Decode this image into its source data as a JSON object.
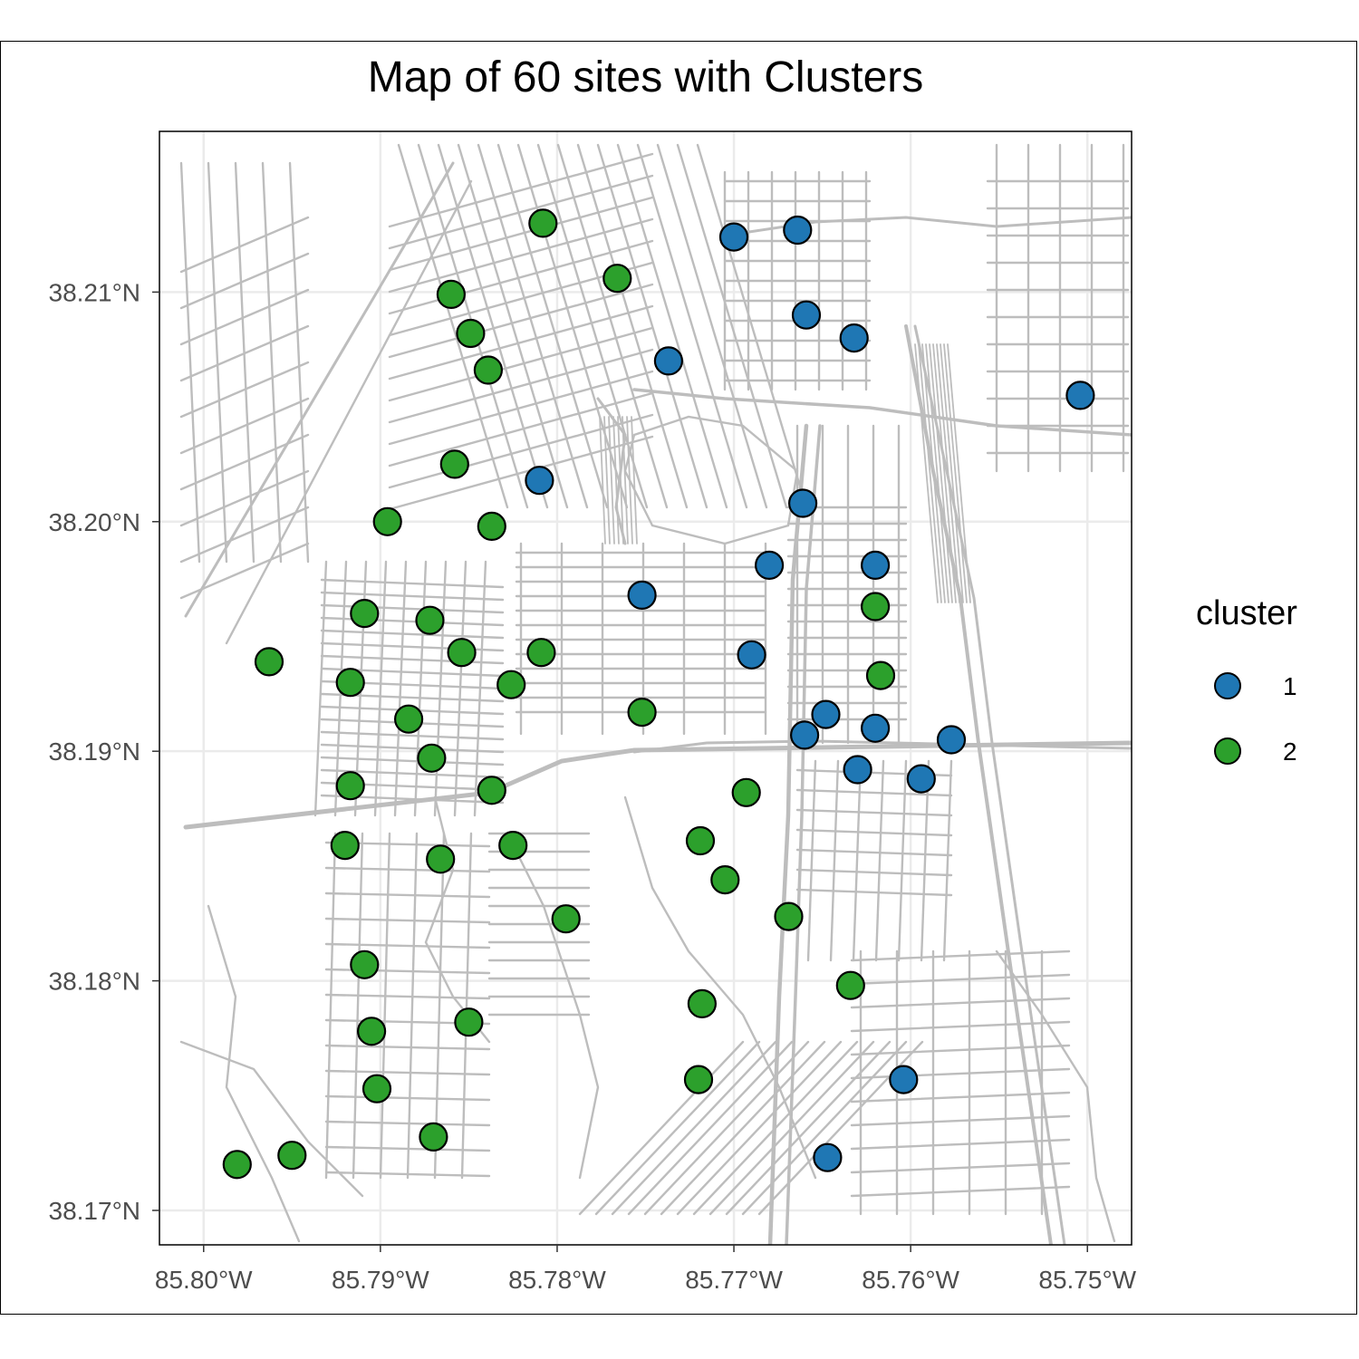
{
  "title": "Map of 60 sites with Clusters",
  "colors": {
    "cluster_1": "#1f77b4",
    "cluster_2": "#2ca02c",
    "streets": "#bdbdbd",
    "grid": "#ebebeb"
  },
  "legend": {
    "title": "cluster",
    "items": [
      {
        "label": "1",
        "color": "#1f77b4"
      },
      {
        "label": "2",
        "color": "#2ca02c"
      }
    ]
  },
  "chart_data": {
    "type": "scatter",
    "title": "Map of 60 sites with Clusters",
    "xlabel": "",
    "ylabel": "",
    "x_ticks": [
      -85.8,
      -85.79,
      -85.78,
      -85.77,
      -85.76,
      -85.75
    ],
    "x_tick_labels": [
      "85.80°W",
      "85.79°W",
      "85.78°W",
      "85.77°W",
      "85.76°W",
      "85.75°W"
    ],
    "y_ticks": [
      38.17,
      38.18,
      38.19,
      38.2,
      38.21
    ],
    "y_tick_labels": [
      "38.17°N",
      "38.18°N",
      "38.19°N",
      "38.20°N",
      "38.21°N"
    ],
    "xlim": [
      -85.8025,
      -85.7475
    ],
    "ylim": [
      38.1685,
      38.217
    ],
    "grid": true,
    "legend_position": "right",
    "background": "street map",
    "series": [
      {
        "name": "1",
        "color": "#1f77b4",
        "points": [
          [
            -85.77,
            38.2124
          ],
          [
            -85.7664,
            38.2127
          ],
          [
            -85.7659,
            38.209
          ],
          [
            -85.7632,
            38.208
          ],
          [
            -85.7737,
            38.207
          ],
          [
            -85.7504,
            38.2055
          ],
          [
            -85.781,
            38.2018
          ],
          [
            -85.7661,
            38.2008
          ],
          [
            -85.768,
            38.1981
          ],
          [
            -85.762,
            38.1981
          ],
          [
            -85.7752,
            38.1968
          ],
          [
            -85.769,
            38.1942
          ],
          [
            -85.7648,
            38.1916
          ],
          [
            -85.766,
            38.1907
          ],
          [
            -85.762,
            38.191
          ],
          [
            -85.7577,
            38.1905
          ],
          [
            -85.763,
            38.1892
          ],
          [
            -85.7594,
            38.1888
          ],
          [
            -85.7604,
            38.1757
          ],
          [
            -85.7647,
            38.1723
          ]
        ]
      },
      {
        "name": "2",
        "color": "#2ca02c",
        "points": [
          [
            -85.7808,
            38.213
          ],
          [
            -85.7766,
            38.2106
          ],
          [
            -85.786,
            38.2099
          ],
          [
            -85.7849,
            38.2082
          ],
          [
            -85.7839,
            38.2066
          ],
          [
            -85.7858,
            38.2025
          ],
          [
            -85.7896,
            38.2
          ],
          [
            -85.7837,
            38.1998
          ],
          [
            -85.762,
            38.1963
          ],
          [
            -85.7909,
            38.196
          ],
          [
            -85.7872,
            38.1957
          ],
          [
            -85.7854,
            38.1943
          ],
          [
            -85.7809,
            38.1943
          ],
          [
            -85.7963,
            38.1939
          ],
          [
            -85.7617,
            38.1933
          ],
          [
            -85.7917,
            38.193
          ],
          [
            -85.7826,
            38.1929
          ],
          [
            -85.7752,
            38.1917
          ],
          [
            -85.7884,
            38.1914
          ],
          [
            -85.7871,
            38.1897
          ],
          [
            -85.7917,
            38.1885
          ],
          [
            -85.7837,
            38.1883
          ],
          [
            -85.7693,
            38.1882
          ],
          [
            -85.7719,
            38.1861
          ],
          [
            -85.792,
            38.1859
          ],
          [
            -85.7825,
            38.1859
          ],
          [
            -85.7866,
            38.1853
          ],
          [
            -85.7705,
            38.1844
          ],
          [
            -85.7669,
            38.1828
          ],
          [
            -85.7795,
            38.1827
          ],
          [
            -85.7909,
            38.1807
          ],
          [
            -85.7634,
            38.1798
          ],
          [
            -85.7718,
            38.179
          ],
          [
            -85.785,
            38.1782
          ],
          [
            -85.7905,
            38.1778
          ],
          [
            -85.772,
            38.1757
          ],
          [
            -85.7902,
            38.1753
          ],
          [
            -85.787,
            38.1732
          ],
          [
            -85.795,
            38.1724
          ],
          [
            -85.7981,
            38.172
          ]
        ]
      }
    ]
  }
}
